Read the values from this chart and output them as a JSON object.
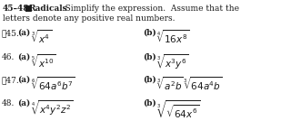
{
  "bg_color": "#ffffff",
  "text_color": "#1a1a1a",
  "title_bold": "45–48 ■ Radicals",
  "title_normal": "   Simplify the expression.  Assume that the",
  "title_line2": "letters denote any positive real numbers.",
  "fs_title": 6.5,
  "fs_body": 6.5,
  "fs_math": 7.5,
  "rows": [
    {
      "number": "‧45.",
      "a_expr": "$\\sqrt[3]{x^4}$",
      "b_expr": "$\\sqrt[4]{16x^8}$"
    },
    {
      "number": "46.",
      "a_expr": "$\\sqrt[5]{x^{10}}$",
      "b_expr": "$\\sqrt[3]{x^3y^6}$"
    },
    {
      "number": "‧47.",
      "a_expr": "$\\sqrt[6]{64a^6b^7}$",
      "b_expr": "$\\sqrt[3]{a^2b}\\,\\sqrt[3]{64a^4b}$"
    },
    {
      "number": "48.",
      "a_expr": "$\\sqrt[4]{x^4y^2z^2}$",
      "b_expr": "$\\sqrt[3]{\\sqrt{64x^6}}$"
    }
  ]
}
